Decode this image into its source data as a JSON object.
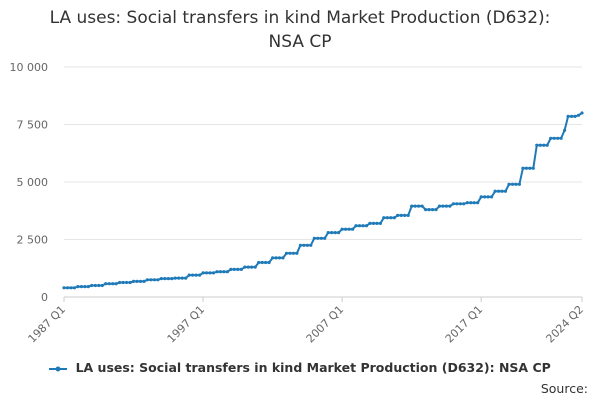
{
  "colors": {
    "series": "#1f7ab8",
    "grid": "#e6e6e6",
    "axis_text": "#666666"
  },
  "source_label": "Source:",
  "chart_data": {
    "type": "line",
    "title": "LA uses: Social transfers in kind Market Production (D632): NSA CP",
    "title_lines": [
      "LA uses: Social transfers in kind Market Production (D632):",
      "NSA CP"
    ],
    "xlabel": "",
    "ylabel": "",
    "ylim": [
      0,
      10000
    ],
    "y_ticks": [
      {
        "value": 0,
        "label": "0"
      },
      {
        "value": 2500,
        "label": "2 500"
      },
      {
        "value": 5000,
        "label": "5 000"
      },
      {
        "value": 7500,
        "label": "7 500"
      },
      {
        "value": 10000,
        "label": "10 000"
      }
    ],
    "x_range": [
      "1987 Q1",
      "2024 Q2"
    ],
    "x_tick_labels": [
      "1987 Q1",
      "1997 Q1",
      "2007 Q1",
      "2017 Q1",
      "2024 Q2"
    ],
    "grid": true,
    "legend_position": "bottom",
    "series": [
      {
        "name": "LA uses: Social transfers in kind Market Production (D632): NSA CP",
        "points": [
          [
            "1987 Q1",
            400
          ],
          [
            "1988 Q1",
            450
          ],
          [
            "1989 Q1",
            500
          ],
          [
            "1990 Q1",
            580
          ],
          [
            "1991 Q1",
            630
          ],
          [
            "1992 Q1",
            680
          ],
          [
            "1993 Q1",
            750
          ],
          [
            "1994 Q1",
            800
          ],
          [
            "1995 Q1",
            820
          ],
          [
            "1996 Q1",
            950
          ],
          [
            "1997 Q1",
            1050
          ],
          [
            "1998 Q1",
            1100
          ],
          [
            "1999 Q1",
            1200
          ],
          [
            "2000 Q1",
            1300
          ],
          [
            "2001 Q1",
            1500
          ],
          [
            "2002 Q1",
            1700
          ],
          [
            "2003 Q1",
            1900
          ],
          [
            "2004 Q1",
            2250
          ],
          [
            "2005 Q1",
            2550
          ],
          [
            "2006 Q1",
            2800
          ],
          [
            "2007 Q1",
            2950
          ],
          [
            "2008 Q1",
            3100
          ],
          [
            "2009 Q1",
            3200
          ],
          [
            "2010 Q1",
            3450
          ],
          [
            "2011 Q1",
            3550
          ],
          [
            "2012 Q1",
            3950
          ],
          [
            "2013 Q1",
            3800
          ],
          [
            "2014 Q1",
            3950
          ],
          [
            "2015 Q1",
            4050
          ],
          [
            "2016 Q1",
            4100
          ],
          [
            "2017 Q1",
            4350
          ],
          [
            "2018 Q1",
            4600
          ],
          [
            "2019 Q1",
            4900
          ],
          [
            "2020 Q1",
            5600
          ],
          [
            "2021 Q1",
            6600
          ],
          [
            "2022 Q1",
            6900
          ],
          [
            "2023 Q1",
            7250
          ],
          [
            "2023 Q2",
            7850
          ],
          [
            "2024 Q1",
            7900
          ],
          [
            "2024 Q2",
            8000
          ]
        ]
      }
    ]
  }
}
